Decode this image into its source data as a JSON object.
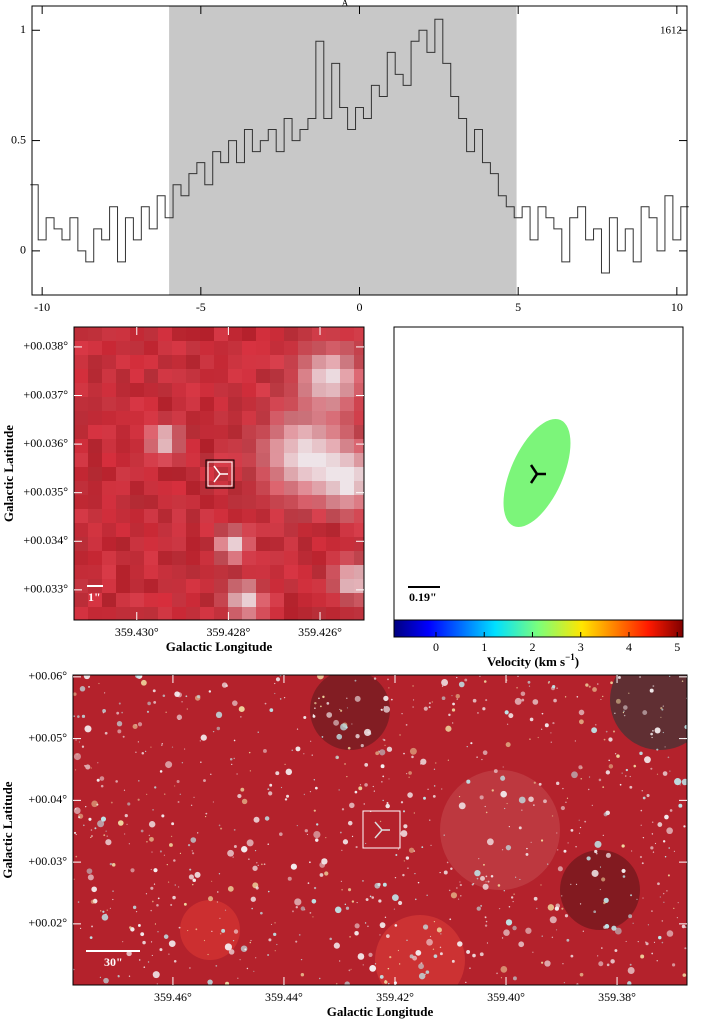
{
  "chart_data": [
    {
      "type": "step",
      "title": "A",
      "annotation": "1612",
      "color": "#333333",
      "shade_color": "#c8c8c8",
      "shade": [
        -6,
        4.95
      ],
      "x": [
        -10.25,
        -10,
        -9.75,
        -9.5,
        -9.25,
        -9,
        -8.75,
        -8.5,
        -8.25,
        -8,
        -7.75,
        -7.5,
        -7.25,
        -7,
        -6.75,
        -6.5,
        -6.25,
        -6,
        -5.75,
        -5.5,
        -5.25,
        -5,
        -4.75,
        -4.5,
        -4.25,
        -4,
        -3.75,
        -3.5,
        -3.25,
        -3,
        -2.75,
        -2.5,
        -2.25,
        -2,
        -1.75,
        -1.5,
        -1.25,
        -1,
        -0.75,
        -0.5,
        -0.25,
        0,
        0.25,
        0.5,
        0.75,
        1,
        1.25,
        1.5,
        1.75,
        2,
        2.25,
        2.5,
        2.75,
        3,
        3.25,
        3.5,
        3.75,
        4,
        4.25,
        4.5,
        4.75,
        5,
        5.25,
        5.5,
        5.75,
        6,
        6.25,
        6.5,
        6.75,
        7,
        7.25,
        7.5,
        7.75,
        8,
        8.25,
        8.5,
        8.75,
        9,
        9.25,
        9.5,
        9.75,
        10,
        10.25
      ],
      "values": [
        0.3,
        0.05,
        0.15,
        0.1,
        0.05,
        0.15,
        0.0,
        -0.05,
        0.1,
        0.05,
        0.2,
        -0.05,
        0.15,
        0.05,
        0.2,
        0.1,
        0.25,
        0.15,
        0.3,
        0.25,
        0.35,
        0.4,
        0.3,
        0.45,
        0.4,
        0.5,
        0.4,
        0.55,
        0.45,
        0.5,
        0.55,
        0.45,
        0.6,
        0.5,
        0.55,
        0.6,
        0.95,
        0.6,
        0.85,
        0.65,
        0.55,
        0.65,
        0.6,
        0.75,
        0.7,
        0.9,
        0.8,
        0.75,
        0.95,
        1.0,
        0.9,
        1.05,
        0.85,
        0.7,
        0.6,
        0.45,
        0.55,
        0.4,
        0.35,
        0.25,
        0.2,
        0.15,
        0.2,
        0.05,
        0.2,
        0.15,
        0.1,
        -0.05,
        0.15,
        0.2,
        0.05,
        0.1,
        -0.1,
        0.15,
        0.0,
        0.1,
        -0.05,
        0.2,
        0.15,
        0.0,
        0.25,
        0.05,
        0.2
      ],
      "xlim": [
        -10.32,
        10.32
      ],
      "ylim": [
        -0.2,
        1.11
      ],
      "xticks": [
        -10,
        -5,
        0,
        5,
        10
      ],
      "yticks": [
        0,
        0.5,
        1
      ]
    },
    {
      "type": "image",
      "xlabel": "Galactic Longitude",
      "ylabel": "Galactic Latitude",
      "scale_label": "1\"",
      "xlim": [
        359.43137,
        359.42504
      ],
      "ylim": [
        0.03238,
        0.03841
      ],
      "xticks": [
        {
          "value": 359.43,
          "label": "359.430°"
        },
        {
          "value": 359.428,
          "label": "359.428°"
        },
        {
          "value": 359.426,
          "label": "359.426°"
        }
      ],
      "yticks": [
        {
          "value": 0.033,
          "label": "+00.033°"
        },
        {
          "value": 0.034,
          "label": "+00.034°"
        },
        {
          "value": 0.035,
          "label": "+00.035°"
        },
        {
          "value": 0.036,
          "label": "+00.036°"
        },
        {
          "value": 0.037,
          "label": "+00.037°"
        },
        {
          "value": 0.038,
          "label": "+00.038°"
        }
      ]
    },
    {
      "type": "ellipse",
      "scale_label": "0.19\"",
      "color": "#7cf57a",
      "colorbar_label": {
        "text": "Velocity (km s",
        "superscript": "−1",
        "suffix": ")"
      },
      "cbar_lim": [
        -0.87,
        5.12
      ],
      "cbar_ticks": [
        0,
        1,
        2,
        3,
        4,
        5
      ]
    },
    {
      "type": "image",
      "xlabel": "Galactic Longitude",
      "ylabel": "Galactic Latitude",
      "scale_label": "30\"",
      "xlim": [
        359.478,
        359.3674
      ],
      "ylim": [
        0.0101,
        0.0603
      ],
      "xticks": [
        {
          "value": 359.46,
          "label": "359.46°"
        },
        {
          "value": 359.44,
          "label": "359.44°"
        },
        {
          "value": 359.42,
          "label": "359.42°"
        },
        {
          "value": 359.4,
          "label": "359.40°"
        },
        {
          "value": 359.38,
          "label": "359.38°"
        }
      ],
      "yticks": [
        {
          "value": 0.02,
          "label": "+00.02°"
        },
        {
          "value": 0.03,
          "label": "+00.03°"
        },
        {
          "value": 0.04,
          "label": "+00.04°"
        },
        {
          "value": 0.05,
          "label": "+00.05°"
        },
        {
          "value": 0.06,
          "label": "+00.06°"
        }
      ]
    }
  ]
}
